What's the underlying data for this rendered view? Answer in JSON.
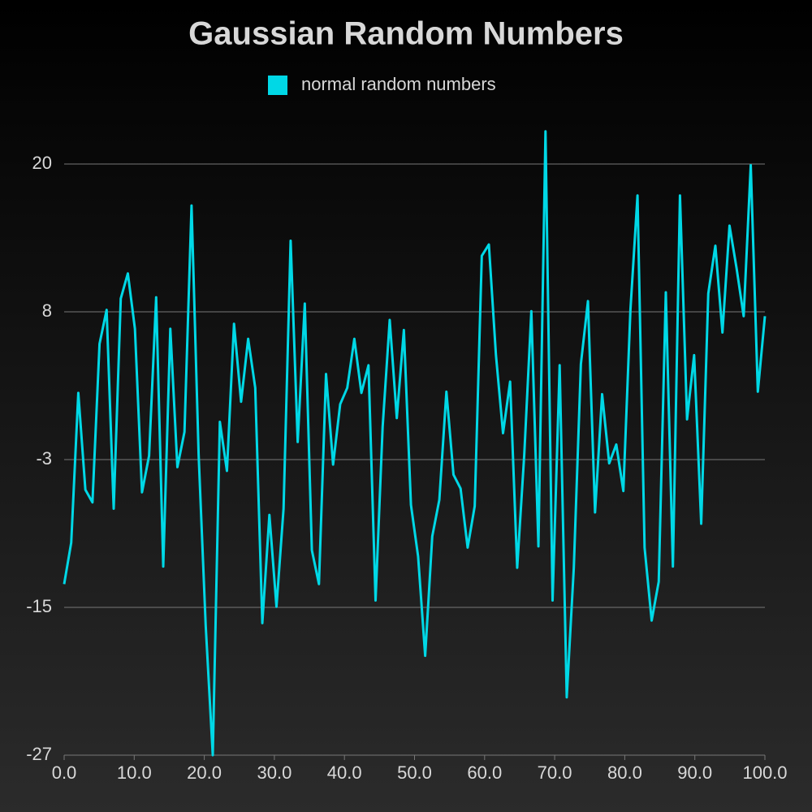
{
  "chart_data": {
    "type": "line",
    "title": "Gaussian Random Numbers",
    "x": [
      0,
      1.01,
      2.02,
      3.03,
      4.04,
      5.05,
      6.06,
      7.07,
      8.08,
      9.09,
      10.1,
      11.11,
      12.12,
      13.13,
      14.14,
      15.15,
      16.16,
      17.17,
      18.18,
      19.19,
      20.2,
      21.21,
      22.22,
      23.23,
      24.24,
      25.25,
      26.26,
      27.27,
      28.28,
      29.29,
      30.3,
      31.31,
      32.32,
      33.33,
      34.34,
      35.35,
      36.36,
      37.37,
      38.38,
      39.39,
      40.4,
      41.41,
      42.42,
      43.43,
      44.44,
      45.45,
      46.46,
      47.47,
      48.48,
      49.49,
      50.51,
      51.52,
      52.53,
      53.54,
      54.55,
      55.56,
      56.57,
      57.58,
      58.59,
      59.6,
      60.61,
      61.62,
      62.63,
      63.64,
      64.65,
      65.66,
      66.67,
      67.68,
      68.69,
      69.7,
      70.71,
      71.72,
      72.73,
      73.74,
      74.75,
      75.76,
      76.77,
      77.78,
      78.79,
      79.8,
      80.81,
      81.82,
      82.83,
      83.84,
      84.85,
      85.86,
      86.87,
      87.88,
      88.89,
      89.9,
      90.91,
      91.92,
      92.93,
      93.94,
      94.95,
      95.96,
      96.97,
      97.98,
      98.99,
      100
    ],
    "series": [
      {
        "name": "normal random numbers",
        "color": "#00d8e6",
        "values": [
          -13.4,
          -10.1,
          1.8,
          -5.9,
          -6.9,
          5.7,
          8.4,
          -7.4,
          9.3,
          11.3,
          6.9,
          -6.1,
          -3.2,
          9.4,
          -12.0,
          6.9,
          -4.1,
          -1.3,
          16.7,
          -3.1,
          -16.7,
          -27.0,
          -0.5,
          -4.4,
          7.3,
          1.1,
          6.1,
          2.2,
          -16.5,
          -7.9,
          -15.2,
          -7.4,
          13.9,
          -2.1,
          8.9,
          -10.7,
          -13.4,
          3.3,
          -3.9,
          0.9,
          2.2,
          6.1,
          1.8,
          4.0,
          -14.7,
          -0.9,
          7.6,
          -0.2,
          6.8,
          -7.1,
          -11.2,
          -19.1,
          -9.6,
          -6.7,
          1.9,
          -4.7,
          -5.8,
          -10.5,
          -7.2,
          12.7,
          13.6,
          4.8,
          -1.4,
          2.7,
          -12.1,
          -3.1,
          8.3,
          -10.4,
          22.6,
          -14.7,
          4.0,
          -22.4,
          -12.1,
          4.1,
          9.1,
          -7.7,
          1.7,
          -3.8,
          -2.3,
          -6.0,
          8.4,
          17.5,
          -10.5,
          -16.3,
          -13.2,
          9.8,
          -12.0,
          17.5,
          -0.3,
          4.8,
          -8.6,
          9.7,
          13.5,
          6.6,
          15.1,
          11.7,
          7.9,
          19.9,
          1.9,
          7.9
        ]
      }
    ],
    "xlim": [
      0,
      100
    ],
    "xticks": [
      {
        "value": 0,
        "label": "0.0"
      },
      {
        "value": 10,
        "label": "10.0"
      },
      {
        "value": 20,
        "label": "20.0"
      },
      {
        "value": 30,
        "label": "30.0"
      },
      {
        "value": 40,
        "label": "40.0"
      },
      {
        "value": 50,
        "label": "50.0"
      },
      {
        "value": 60,
        "label": "60.0"
      },
      {
        "value": 70,
        "label": "70.0"
      },
      {
        "value": 80,
        "label": "80.0"
      },
      {
        "value": 90,
        "label": "90.0"
      },
      {
        "value": 100,
        "label": "100.0"
      }
    ],
    "ylim": [
      -27,
      23
    ],
    "yticks": [
      -27,
      {
        "value": -15.25,
        "label": "-15"
      },
      {
        "value": -3.5,
        "label": "-3"
      },
      {
        "value": 8.25,
        "label": "8"
      },
      20
    ],
    "grid": true,
    "legend": "top"
  }
}
